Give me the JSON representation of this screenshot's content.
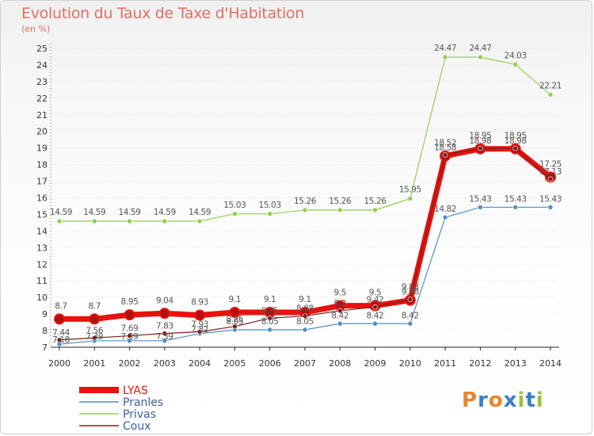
{
  "header": {
    "title": "Evolution du Taux de Taxe d'Habitation",
    "unit": "(en %)"
  },
  "logo": {
    "text": "Proxiti",
    "letters": [
      "P",
      "r",
      "o",
      "x",
      "i",
      "t",
      "i"
    ],
    "colors": [
      "#e8842c",
      "#3b7fc4",
      "#e8842c",
      "#3b7fc4",
      "#9bc23c",
      "#3b7fc4",
      "#9bc23c"
    ]
  },
  "chart_data": {
    "type": "line",
    "x": [
      "2000",
      "2001",
      "2002",
      "2003",
      "2004",
      "2005",
      "2006",
      "2007",
      "2008",
      "2009",
      "2010",
      "2011",
      "2012",
      "2013",
      "2014"
    ],
    "ylim": [
      7,
      25
    ],
    "yticks": [
      "7",
      "8",
      "9",
      "10",
      "11",
      "12",
      "13",
      "14",
      "15",
      "16",
      "17",
      "18",
      "19",
      "20",
      "21",
      "22",
      "23",
      "24",
      "25"
    ],
    "grid": "horizontal",
    "legend_position": "bottom-left",
    "series": [
      {
        "name": "LYAS",
        "color": "#e8120c",
        "values": [
          8.7,
          8.7,
          8.95,
          9.04,
          8.93,
          9.1,
          9.1,
          9.1,
          9.5,
          9.5,
          9.83,
          18.52,
          18.95,
          18.95,
          17.25
        ],
        "labels": [
          "8.7",
          "8.7",
          "8.95",
          "9.04",
          "8.93",
          "9.1",
          "9.1",
          "9.1",
          "9.5",
          "9.5",
          "9.83",
          "18.52",
          "18.95",
          "18.95",
          "17.25"
        ]
      },
      {
        "name": "Pranles",
        "color": "#4f8fc8",
        "values": [
          7.18,
          7.39,
          7.39,
          7.39,
          7.82,
          8.05,
          8.05,
          8.05,
          8.42,
          8.42,
          8.42,
          14.82,
          15.43,
          15.43,
          15.43
        ],
        "labels": [
          "7.18",
          "7.39",
          "7.39",
          "7.39",
          "7.82",
          "8.05",
          "8.05",
          "8.05",
          "8.42",
          "8.42",
          "8.42",
          "14.82",
          "15.43",
          "15.43",
          "15.43"
        ]
      },
      {
        "name": "Privas",
        "color": "#8fd04f",
        "values": [
          14.59,
          14.59,
          14.59,
          14.59,
          14.59,
          15.03,
          15.03,
          15.26,
          15.26,
          15.26,
          15.95,
          24.47,
          24.47,
          24.03,
          22.21
        ],
        "labels": [
          "14.59",
          "14.59",
          "14.59",
          "14.59",
          "14.59",
          "15.03",
          "15.03",
          "15.26",
          "15.26",
          "15.26",
          "15.95",
          "24.47",
          "24.47",
          "24.03",
          "22.21"
        ]
      },
      {
        "name": "Coux",
        "color": "#7a2020",
        "values": [
          7.44,
          7.56,
          7.69,
          7.83,
          7.93,
          8.25,
          8.75,
          8.88,
          9.2,
          9.42,
          9.88,
          18.58,
          18.98,
          18.98,
          17.13
        ],
        "labels": [
          "7.44",
          "7.56",
          "7.69",
          "7.83",
          "7.93",
          "8.25",
          "8.75",
          "8.88",
          "9.2",
          "9.42",
          "9.88",
          "18.58",
          "18.98",
          "18.98",
          "17.13"
        ]
      }
    ]
  }
}
